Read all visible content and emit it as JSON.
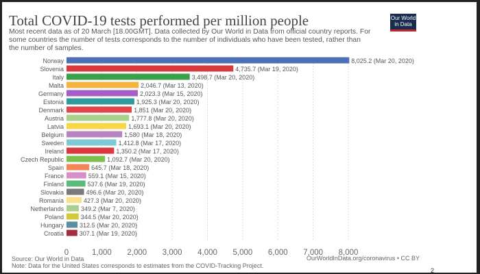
{
  "chart_data": {
    "type": "bar",
    "orientation": "horizontal",
    "title": "Total COVID-19 tests performed per million people",
    "subtitle": "Most recent data as of 20 March [18.00GMT]. Data collected by Our World in Data from official country reports. For some countries the number of tests corresponds to the number of individuals who have been tested, rather than the number of samples.",
    "categories": [
      "Norway",
      "Slovenia",
      "Italy",
      "Malta",
      "Germany",
      "Estonia",
      "Denmark",
      "Austria",
      "Latvia",
      "Belgium",
      "Sweden",
      "Ireland",
      "Czech Republic",
      "Spain",
      "France",
      "Finland",
      "Slovakia",
      "Romania",
      "Netherlands",
      "Poland",
      "Hungary",
      "Croatia"
    ],
    "values": [
      8025.2,
      4735.7,
      3498.7,
      2046.7,
      2023.3,
      1925.3,
      1851,
      1777.8,
      1693.1,
      1580,
      1412.8,
      1350.2,
      1092.7,
      645.7,
      559.1,
      537.6,
      496.6,
      427.3,
      349.2,
      344.5,
      312.5,
      307.1
    ],
    "value_labels": [
      "8,025.2 (Mar 20, 2020)",
      "4,735.7 (Mar 19, 2020)",
      "3,498.7 (Mar 20, 2020)",
      "2,046.7 (Mar 13, 2020)",
      "2,023.3 (Mar 15, 2020)",
      "1,925.3 (Mar 20, 2020)",
      "1,851 (Mar 20, 2020)",
      "1,777.8 (Mar 20, 2020)",
      "1,693.1 (Mar 20, 2020)",
      "1,580 (Mar 18, 2020)",
      "1,412.8 (Mar 17, 2020)",
      "1,350.2 (Mar 17, 2020)",
      "1,092.7 (Mar 20, 2020)",
      "645.7 (Mar 18, 2020)",
      "559.1 (Mar 15, 2020)",
      "537.6 (Mar 19, 2020)",
      "496.6 (Mar 20, 2020)",
      "427.3 (Mar 20, 2020)",
      "349.2 (Mar 7, 2020)",
      "344.5 (Mar 20, 2020)",
      "312.5 (Mar 20, 2020)",
      "307.1 (Mar 19, 2020)"
    ],
    "colors": [
      "#4c6fb5",
      "#d83b3f",
      "#3aa14a",
      "#f4b23e",
      "#a65dc7",
      "#2e9a9c",
      "#e0474c",
      "#a8d18c",
      "#f7d648",
      "#b684c0",
      "#7ecad4",
      "#d93a3f",
      "#7cc04f",
      "#f4875a",
      "#d68fc9",
      "#5cba7a",
      "#7a7a7a",
      "#f9e08e",
      "#a9d08e",
      "#d4c935",
      "#5b8fa2",
      "#a32d3e"
    ],
    "xlim": [
      0,
      8000
    ],
    "xticks": [
      0,
      1000,
      2000,
      3000,
      4000,
      5000,
      6000,
      7000,
      8000
    ],
    "xtick_labels": [
      "0",
      "1,000",
      "2,000",
      "3,000",
      "4,000",
      "5,000",
      "6,000",
      "7,000",
      "8,000"
    ],
    "grid": "vertical dotted",
    "xlabel": "",
    "ylabel": ""
  },
  "logo": {
    "line1": "Our World",
    "line2": "in Data"
  },
  "footer": {
    "source": "Source: Our World in Data",
    "note": "Note: Data for the United States corresponds to estimates from the COVID-Tracking Project.",
    "credit": "OurWorldInData.org/coronavirus • CC BY",
    "page_number": "2"
  }
}
